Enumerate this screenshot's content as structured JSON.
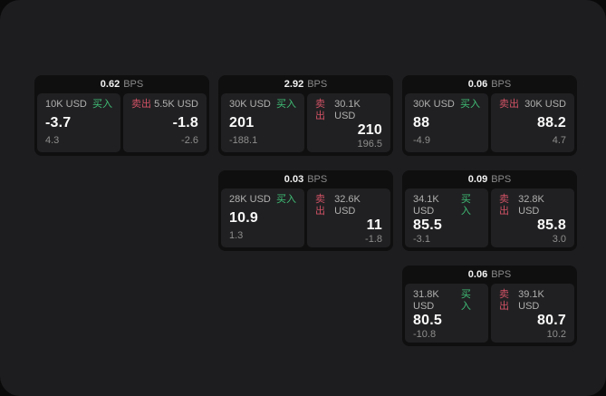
{
  "labels": {
    "bps_unit": "BPS",
    "buy": "买入",
    "sell": "卖出"
  },
  "colors": {
    "page_bg": "#0a0a0b",
    "panel_bg": "#1d1d1f",
    "card_bg": "#0f0f10",
    "tile_bg": "#202022",
    "buy_green": "#40bf77",
    "sell_red": "#d15265",
    "value_white": "#fafafa",
    "muted_gray": "#8e8e8e"
  },
  "cards": [
    {
      "bps": "0.62",
      "buy": {
        "size": "10K USD",
        "value": "-3.7",
        "sub": "4.3"
      },
      "sell": {
        "size": "5.5K USD",
        "value": "-1.8",
        "sub": "-2.6"
      }
    },
    {
      "bps": "2.92",
      "buy": {
        "size": "30K USD",
        "value": "201",
        "sub": "-188.1"
      },
      "sell": {
        "size": "30.1K USD",
        "value": "210",
        "sub": "196.5"
      }
    },
    {
      "bps": "0.06",
      "buy": {
        "size": "30K USD",
        "value": "88",
        "sub": "-4.9"
      },
      "sell": {
        "size": "30K USD",
        "value": "88.2",
        "sub": "4.7"
      }
    },
    {
      "bps": "0.03",
      "buy": {
        "size": "28K USD",
        "value": "10.9",
        "sub": "1.3"
      },
      "sell": {
        "size": "32.6K USD",
        "value": "11",
        "sub": "-1.8"
      }
    },
    {
      "bps": "0.09",
      "buy": {
        "size": "34.1K USD",
        "value": "85.5",
        "sub": "-3.1"
      },
      "sell": {
        "size": "32.8K USD",
        "value": "85.8",
        "sub": "3.0"
      }
    },
    {
      "bps": "0.06",
      "buy": {
        "size": "31.8K USD",
        "value": "80.5",
        "sub": "-10.8"
      },
      "sell": {
        "size": "39.1K USD",
        "value": "80.7",
        "sub": "10.2"
      }
    }
  ]
}
